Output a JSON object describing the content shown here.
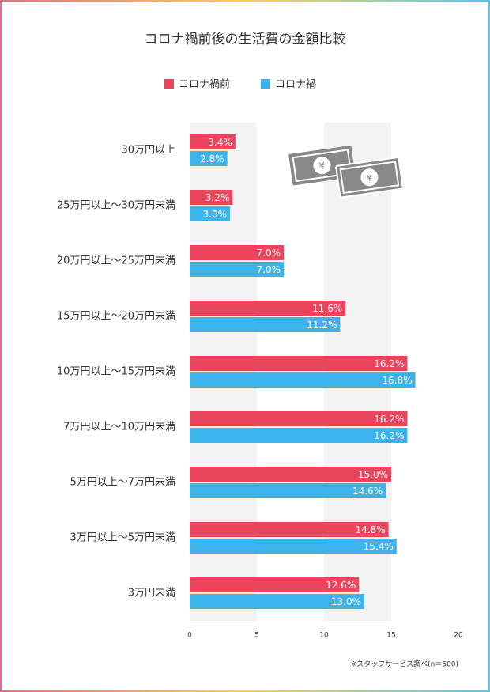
{
  "chart_data": {
    "type": "bar",
    "orientation": "horizontal",
    "title": "コロナ禍前後の生活費の金額比較",
    "categories": [
      "30万円以上",
      "25万円以上〜30万円未満",
      "20万円以上〜25万円未満",
      "15万円以上〜20万円未満",
      "10万円以上〜15万円未満",
      "7万円以上〜10万円未満",
      "5万円以上〜7万円未満",
      "3万円以上〜5万円未満",
      "3万円未満"
    ],
    "series": [
      {
        "name": "コロナ禍前",
        "color": "#e9455d",
        "values": [
          3.4,
          3.2,
          7.0,
          11.6,
          16.2,
          16.2,
          15.0,
          14.8,
          12.6
        ],
        "value_labels": [
          "3.4%",
          "3.2%",
          "7.0%",
          "11.6%",
          "16.2%",
          "16.2%",
          "15.0%",
          "14.8%",
          "12.6%"
        ]
      },
      {
        "name": "コロナ禍",
        "color": "#3cb3ea",
        "values": [
          2.8,
          3.0,
          7.0,
          11.2,
          16.8,
          16.2,
          14.6,
          15.4,
          13.0
        ],
        "value_labels": [
          "2.8%",
          "3.0%",
          "7.0%",
          "11.2%",
          "16.8%",
          "16.2%",
          "14.6%",
          "15.4%",
          "13.0%"
        ]
      }
    ],
    "xlim": [
      0,
      20
    ],
    "xticks": [
      0,
      5,
      10,
      15,
      20
    ],
    "grid": "bands",
    "legend": "top",
    "note": "※スタッフサービス調べ(n＝500)"
  }
}
